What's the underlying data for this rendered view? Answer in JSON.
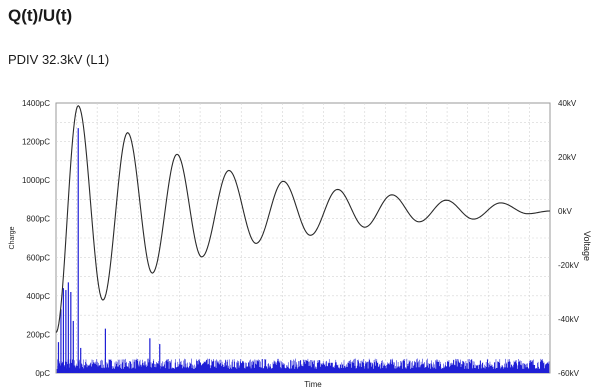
{
  "header": {
    "title": "Q(t)/U(t)",
    "subtitle": "PDIV 32.3kV (L1)"
  },
  "chart_data": {
    "type": "line",
    "title": "Q(t)/U(t)",
    "subtitle": "PDIV 32.3kV (L1)",
    "xlabel": "Time",
    "ylabel": "Charge",
    "y2label": "Voltage",
    "grid": true,
    "ylim": [
      0,
      1400
    ],
    "y2lim": [
      -60,
      40
    ],
    "y_ticks": [
      "0pC",
      "200pC",
      "400pC",
      "600pC",
      "800pC",
      "1000pC",
      "1200pC",
      "1400pC"
    ],
    "y2_ticks": [
      "-60kV",
      "-40kV",
      "-20kV",
      "0kV",
      "20kV",
      "40kV"
    ],
    "series": [
      {
        "name": "Voltage",
        "axis": "right",
        "color": "#2b2b2b",
        "peaks": [
          {
            "t": 0.045,
            "v": 39
          },
          {
            "t": 0.095,
            "v": -33
          },
          {
            "t": 0.145,
            "v": 29
          },
          {
            "t": 0.195,
            "v": -23
          },
          {
            "t": 0.245,
            "v": 21
          },
          {
            "t": 0.295,
            "v": -17
          },
          {
            "t": 0.35,
            "v": 15
          },
          {
            "t": 0.405,
            "v": -12
          },
          {
            "t": 0.46,
            "v": 11
          },
          {
            "t": 0.515,
            "v": -9
          },
          {
            "t": 0.57,
            "v": 8
          },
          {
            "t": 0.625,
            "v": -6
          },
          {
            "t": 0.68,
            "v": 6
          },
          {
            "t": 0.735,
            "v": -4
          },
          {
            "t": 0.79,
            "v": 4
          },
          {
            "t": 0.845,
            "v": -3
          },
          {
            "t": 0.9,
            "v": 3
          },
          {
            "t": 0.955,
            "v": -1
          },
          {
            "t": 1.0,
            "v": 0
          }
        ],
        "start": {
          "t": 0.0,
          "v": -45
        }
      },
      {
        "name": "Charge",
        "axis": "left",
        "color": "#1f1fd6",
        "noise_floor_pc": 60,
        "spikes": [
          {
            "t": 0.005,
            "q": 160
          },
          {
            "t": 0.01,
            "q": 330
          },
          {
            "t": 0.015,
            "q": 440
          },
          {
            "t": 0.02,
            "q": 430
          },
          {
            "t": 0.025,
            "q": 470
          },
          {
            "t": 0.03,
            "q": 420
          },
          {
            "t": 0.035,
            "q": 270
          },
          {
            "t": 0.045,
            "q": 1270
          },
          {
            "t": 0.05,
            "q": 130
          },
          {
            "t": 0.1,
            "q": 230
          },
          {
            "t": 0.19,
            "q": 180
          },
          {
            "t": 0.21,
            "q": 150
          }
        ]
      }
    ]
  }
}
